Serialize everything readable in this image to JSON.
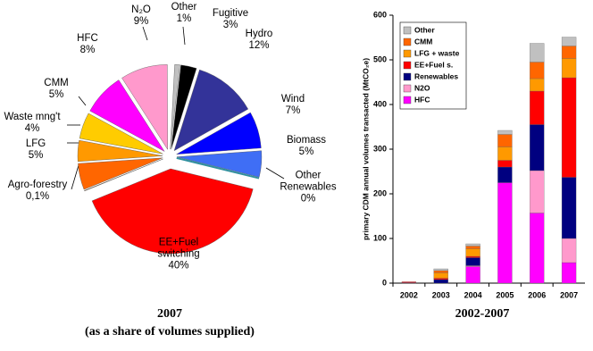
{
  "chart_data": [
    {
      "type": "pie",
      "title": "2007",
      "subtitle": "(as a share of volumes supplied)",
      "categories": [
        "Other",
        "Fugitive",
        "Hydro",
        "Wind",
        "Biomass",
        "Other Renewables",
        "EE+Fuel switching",
        "Agro-forestry",
        "LFG",
        "Waste mng't",
        "CMM",
        "HFC",
        "N₂O"
      ],
      "values": [
        1,
        3,
        12,
        7,
        5,
        0,
        40,
        0.1,
        5,
        4,
        5,
        8,
        9
      ],
      "value_labels": [
        "1%",
        "3%",
        "12%",
        "7%",
        "5%",
        "0%",
        "40%",
        "0,1%",
        "5%",
        "4%",
        "5%",
        "8%",
        "9%"
      ],
      "colors": [
        "#c0c0c0",
        "#000000",
        "#333399",
        "#0000ff",
        "#3f6ef5",
        "#2f8f9f",
        "#ff0000",
        "#996633",
        "#ff6600",
        "#ff9900",
        "#ffcc00",
        "#ff00ff",
        "#ff99cc"
      ]
    },
    {
      "type": "bar",
      "stacked": true,
      "title": "2002-2007",
      "y_label": "primary CDM annual volumes transacted (MtCO₂e)",
      "categories": [
        "2002",
        "2003",
        "2004",
        "2005",
        "2006",
        "2007"
      ],
      "series": [
        {
          "name": "HFC",
          "color": "#ff00ff",
          "values": [
            0,
            0,
            37,
            225,
            157,
            46
          ]
        },
        {
          "name": "N2O",
          "color": "#ff99cc",
          "values": [
            0,
            0,
            2,
            0,
            95,
            54
          ]
        },
        {
          "name": "Renewables",
          "color": "#000080",
          "values": [
            1,
            8,
            18,
            35,
            103,
            137
          ]
        },
        {
          "name": "EE+Fuel s.",
          "color": "#ff0000",
          "values": [
            2,
            3,
            3,
            15,
            75,
            223
          ]
        },
        {
          "name": "LFG + waste",
          "color": "#ff9900",
          "values": [
            0,
            12,
            17,
            30,
            28,
            43
          ]
        },
        {
          "name": "CMM",
          "color": "#ff6600",
          "values": [
            0,
            5,
            6,
            28,
            37,
            28
          ]
        },
        {
          "name": "Other",
          "color": "#c0c0c0",
          "values": [
            0,
            4,
            5,
            9,
            42,
            20
          ]
        }
      ],
      "ylim": [
        0,
        600
      ],
      "yticks": [
        0,
        100,
        200,
        300,
        400,
        500,
        600
      ],
      "legend": "upper left"
    }
  ]
}
